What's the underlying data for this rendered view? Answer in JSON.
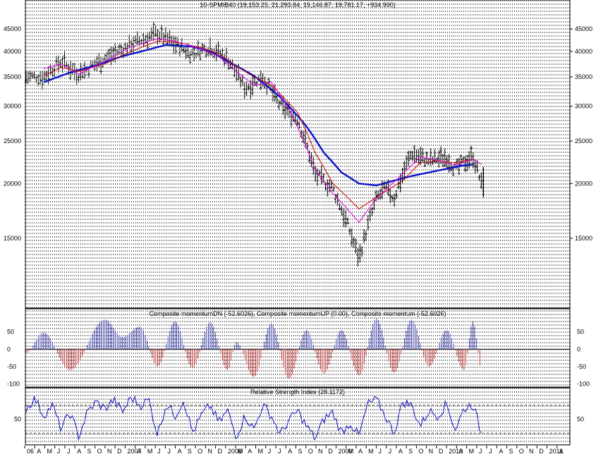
{
  "colors": {
    "background": "#ffffff",
    "grid": "#000000",
    "price_bars": "#000000",
    "ma_short": "#e000e0",
    "ma_mid": "#cc0000",
    "ma_long": "#0a14c8",
    "momentum_up": "#1a1aa0",
    "momentum_down": "#b01010",
    "rsi_line": "#1010c0"
  },
  "chart_data": [
    {
      "type": "bar",
      "title": "10-SPMIB40 (19,153.25, 21,293.84, 19,146.87, 19,781.17, +934.990)",
      "scale": "log",
      "y_ticks": [
        15000,
        20000,
        25000,
        30000,
        35000,
        40000,
        45000
      ],
      "y_tick_labels": [
        "15000",
        "20000",
        "25000",
        "30000",
        "35000",
        "40000",
        "45000"
      ],
      "ylim": [
        10400,
        52000
      ],
      "grid": "vertical dotted",
      "series": [
        {
          "kind": "ma_long",
          "points": [
            [
              "2006-03",
              34000
            ],
            [
              "2006-06",
              35800
            ],
            [
              "2006-09",
              37200
            ],
            [
              "2006-12",
              39000
            ],
            [
              "2007-03",
              40400
            ],
            [
              "2007-05",
              41400
            ],
            [
              "2007-08",
              41000
            ],
            [
              "2007-10",
              40000
            ],
            [
              "2007-12",
              38000
            ],
            [
              "2008-03",
              35200
            ],
            [
              "2008-06",
              31500
            ],
            [
              "2008-09",
              27000
            ],
            [
              "2008-11",
              23500
            ],
            [
              "2009-01",
              21200
            ],
            [
              "2009-03",
              20000
            ],
            [
              "2009-05",
              19800
            ],
            [
              "2009-07",
              20300
            ],
            [
              "2009-09",
              20800
            ],
            [
              "2009-11",
              21200
            ],
            [
              "2010-01",
              21600
            ],
            [
              "2010-03",
              22000
            ],
            [
              "2010-04",
              22100
            ]
          ]
        },
        {
          "kind": "ma_mid",
          "points": [
            [
              "2006-03",
              35200
            ],
            [
              "2006-05",
              36800
            ],
            [
              "2006-07",
              36000
            ],
            [
              "2006-10",
              37500
            ],
            [
              "2007-01",
              40000
            ],
            [
              "2007-04",
              42200
            ],
            [
              "2007-06",
              42000
            ],
            [
              "2007-09",
              40800
            ],
            [
              "2007-11",
              39500
            ],
            [
              "2008-01",
              37000
            ],
            [
              "2008-03",
              35000
            ],
            [
              "2008-05",
              33500
            ],
            [
              "2008-08",
              29000
            ],
            [
              "2008-10",
              23500
            ],
            [
              "2008-12",
              20000
            ],
            [
              "2009-03",
              17500
            ],
            [
              "2009-05",
              18600
            ],
            [
              "2009-08",
              20300
            ],
            [
              "2009-10",
              22300
            ],
            [
              "2009-12",
              22500
            ],
            [
              "2010-02",
              22300
            ],
            [
              "2010-04",
              22700
            ]
          ]
        },
        {
          "kind": "ma_short",
          "points": [
            [
              "2006-03",
              36500
            ],
            [
              "2006-05",
              37500
            ],
            [
              "2006-07",
              35500
            ],
            [
              "2006-10",
              38000
            ],
            [
              "2007-01",
              41000
            ],
            [
              "2007-04",
              42800
            ],
            [
              "2007-06",
              42200
            ],
            [
              "2007-09",
              40500
            ],
            [
              "2007-11",
              39000
            ],
            [
              "2008-01",
              36000
            ],
            [
              "2008-03",
              33500
            ],
            [
              "2008-05",
              34000
            ],
            [
              "2008-07",
              29500
            ],
            [
              "2008-10",
              21500
            ],
            [
              "2008-12",
              19000
            ],
            [
              "2009-03",
              16300
            ],
            [
              "2009-05",
              18500
            ],
            [
              "2009-08",
              21000
            ],
            [
              "2009-10",
              23000
            ],
            [
              "2009-12",
              22600
            ],
            [
              "2010-02",
              22000
            ],
            [
              "2010-04",
              22700
            ],
            [
              "2010-05",
              22100
            ]
          ]
        }
      ],
      "price_path": [
        [
          "2006-03",
          35000
        ],
        [
          "2006-05",
          38000
        ],
        [
          "2006-07",
          35500
        ],
        [
          "2006-10",
          38500
        ],
        [
          "2007-01",
          41500
        ],
        [
          "2007-04",
          44000
        ],
        [
          "2007-06",
          41500
        ],
        [
          "2007-08",
          39500
        ],
        [
          "2007-10",
          41000
        ],
        [
          "2007-12",
          38500
        ],
        [
          "2008-02",
          33000
        ],
        [
          "2008-04",
          35000
        ],
        [
          "2008-06",
          30000
        ],
        [
          "2008-08",
          28000
        ],
        [
          "2008-10",
          21000
        ],
        [
          "2008-12",
          19500
        ],
        [
          "2009-03",
          13500
        ],
        [
          "2009-05",
          18500
        ],
        [
          "2009-06",
          19500
        ],
        [
          "2009-07",
          18500
        ],
        [
          "2009-09",
          23500
        ],
        [
          "2009-11",
          22500
        ],
        [
          "2010-01",
          23000
        ],
        [
          "2010-02",
          21500
        ],
        [
          "2010-04",
          23200
        ],
        [
          "2010-05",
          19781
        ]
      ]
    },
    {
      "type": "bar",
      "title": "Composite momentumDN (-52.6026), Composite momentumUP (0.00), Composite momentum (-52.6026)",
      "y_ticks": [
        -100,
        -50,
        0,
        50
      ],
      "y_tick_labels": [
        "-100",
        "-50",
        "0",
        "50"
      ],
      "ylim": [
        -105,
        100
      ],
      "peaks": [
        [
          "2006-01",
          -10
        ],
        [
          "2006-03",
          48
        ],
        [
          "2006-06",
          -60
        ],
        [
          "2006-10",
          85
        ],
        [
          "2006-12",
          35
        ],
        [
          "2007-02",
          65
        ],
        [
          "2007-04",
          -50
        ],
        [
          "2007-06",
          80
        ],
        [
          "2007-08",
          -55
        ],
        [
          "2007-10",
          78
        ],
        [
          "2007-12",
          -60
        ],
        [
          "2008-01",
          20
        ],
        [
          "2008-03",
          -80
        ],
        [
          "2008-05",
          75
        ],
        [
          "2008-07",
          -85
        ],
        [
          "2008-09",
          55
        ],
        [
          "2008-11",
          -70
        ],
        [
          "2009-01",
          55
        ],
        [
          "2009-03",
          -75
        ],
        [
          "2009-05",
          88
        ],
        [
          "2009-07",
          -68
        ],
        [
          "2009-09",
          85
        ],
        [
          "2009-11",
          -50
        ],
        [
          "2010-01",
          55
        ],
        [
          "2010-03",
          -60
        ],
        [
          "2010-04",
          80
        ],
        [
          "2010-05",
          -60
        ]
      ]
    },
    {
      "type": "line",
      "title": "Relative Strength Index (28.1172)",
      "y_ticks": [
        50
      ],
      "y_tick_labels": [
        "50"
      ],
      "reference_lines": [
        30,
        70
      ],
      "ylim": [
        15,
        85
      ],
      "points": [
        [
          "2006-01",
          65
        ],
        [
          "2006-02",
          80
        ],
        [
          "2006-03",
          55
        ],
        [
          "2006-04",
          70
        ],
        [
          "2006-05",
          35
        ],
        [
          "2006-06",
          60
        ],
        [
          "2006-07",
          25
        ],
        [
          "2006-08",
          60
        ],
        [
          "2006-09",
          75
        ],
        [
          "2006-10",
          65
        ],
        [
          "2006-11",
          78
        ],
        [
          "2006-12",
          60
        ],
        [
          "2007-01",
          82
        ],
        [
          "2007-02",
          70
        ],
        [
          "2007-03",
          78
        ],
        [
          "2007-04",
          28
        ],
        [
          "2007-05",
          72
        ],
        [
          "2007-06",
          55
        ],
        [
          "2007-07",
          78
        ],
        [
          "2007-08",
          30
        ],
        [
          "2007-09",
          55
        ],
        [
          "2007-10",
          70
        ],
        [
          "2007-11",
          45
        ],
        [
          "2007-12",
          62
        ],
        [
          "2008-01",
          25
        ],
        [
          "2008-02",
          55
        ],
        [
          "2008-03",
          35
        ],
        [
          "2008-04",
          70
        ],
        [
          "2008-05",
          55
        ],
        [
          "2008-06",
          28
        ],
        [
          "2008-07",
          48
        ],
        [
          "2008-08",
          62
        ],
        [
          "2008-09",
          40
        ],
        [
          "2008-10",
          22
        ],
        [
          "2008-11",
          50
        ],
        [
          "2008-12",
          60
        ],
        [
          "2009-01",
          30
        ],
        [
          "2009-02",
          45
        ],
        [
          "2009-03",
          25
        ],
        [
          "2009-04",
          72
        ],
        [
          "2009-05",
          78
        ],
        [
          "2009-06",
          55
        ],
        [
          "2009-07",
          30
        ],
        [
          "2009-08",
          75
        ],
        [
          "2009-09",
          70
        ],
        [
          "2009-10",
          40
        ],
        [
          "2009-11",
          62
        ],
        [
          "2009-12",
          55
        ],
        [
          "2010-01",
          72
        ],
        [
          "2010-02",
          35
        ],
        [
          "2010-03",
          65
        ],
        [
          "2010-04",
          72
        ],
        [
          "2010-05",
          28
        ]
      ]
    }
  ],
  "x_axis": {
    "labels": [
      "06",
      "A",
      "M",
      "J",
      "J",
      "A",
      "S",
      "O",
      "N",
      "D",
      "2007",
      "A",
      "M",
      "J",
      "J",
      "A",
      "S",
      "O",
      "N",
      "D",
      "2008",
      "M",
      "A",
      "M",
      "J",
      "J",
      "A",
      "S",
      "O",
      "N",
      "D",
      "2009",
      "M",
      "A",
      "M",
      "J",
      "J",
      "A",
      "S",
      "O",
      "N",
      "D",
      "2010",
      "A",
      "M",
      "J",
      "J",
      "A",
      "S",
      "O",
      "N",
      "D",
      "2011",
      "A"
    ]
  }
}
